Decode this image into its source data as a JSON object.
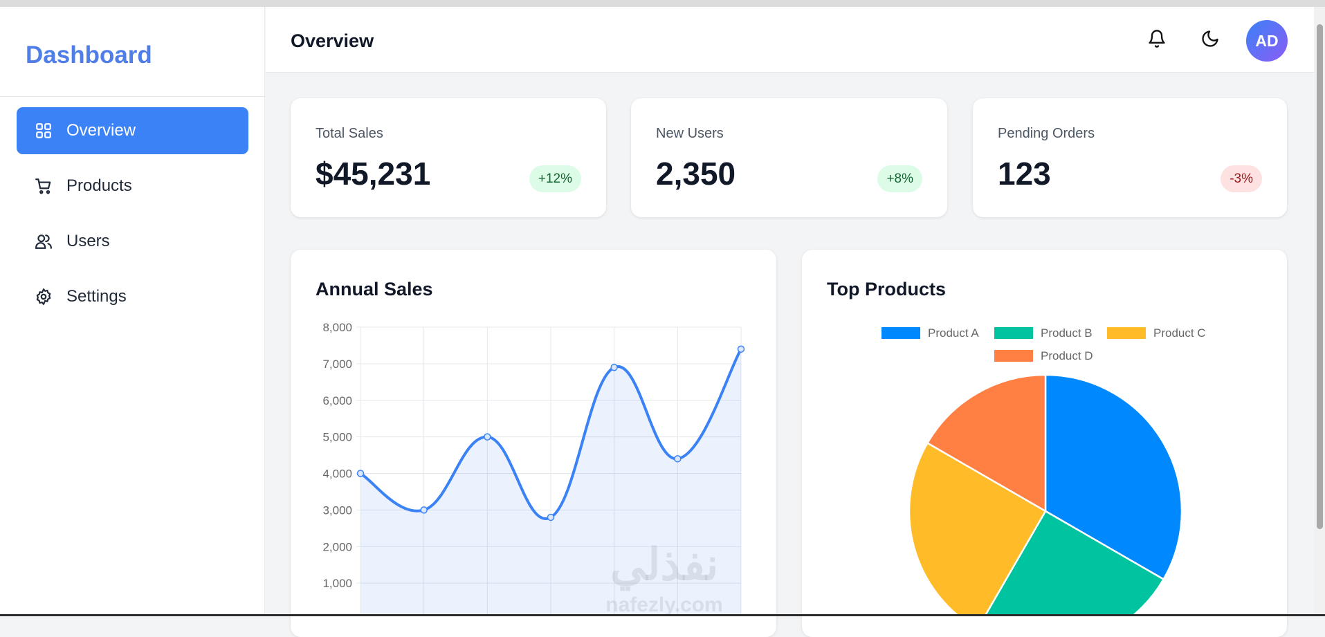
{
  "sidebar": {
    "logo": "Dashboard",
    "nav": [
      "Overview",
      "Products",
      "Users",
      "Settings"
    ]
  },
  "header": {
    "title": "Overview",
    "avatar": "AD"
  },
  "stats": [
    {
      "label": "Total Sales",
      "value": "$45,231",
      "change": "+12%"
    },
    {
      "label": "New Users",
      "value": "2,350",
      "change": "+8%"
    },
    {
      "label": "Pending Orders",
      "value": "123",
      "change": "-3%"
    }
  ],
  "chart_data": [
    {
      "type": "line",
      "title": "Annual Sales",
      "categories": [
        null,
        null,
        null,
        null,
        null,
        null,
        null
      ],
      "values": [
        4000,
        3000,
        5000,
        2800,
        6900,
        4400,
        7400
      ],
      "color": "#3b82f6",
      "ylim": [
        0,
        8000
      ],
      "yticks": [
        {
          "value": 1000,
          "label": "1,000"
        },
        {
          "value": 2000,
          "label": "2,000"
        },
        {
          "value": 3000,
          "label": "3,000"
        },
        {
          "value": 4000,
          "label": "4,000"
        },
        {
          "value": 5000,
          "label": "5,000"
        },
        {
          "value": 6000,
          "label": "6,000"
        },
        {
          "value": 7000,
          "label": "7,000"
        },
        {
          "value": 8000,
          "label": "8,000"
        }
      ],
      "grid": true
    },
    {
      "type": "pie",
      "title": "Top Products",
      "categories": [
        "Product A",
        "Product B",
        "Product C",
        "Product D"
      ],
      "values": [
        40,
        30,
        30,
        20
      ],
      "colors": [
        "#0088fe",
        "#00c49f",
        "#ffbb28",
        "#ff8042"
      ],
      "legend": "top"
    }
  ],
  "watermark": {
    "arabic": "نفذلي",
    "latin": "nafezly.com"
  }
}
